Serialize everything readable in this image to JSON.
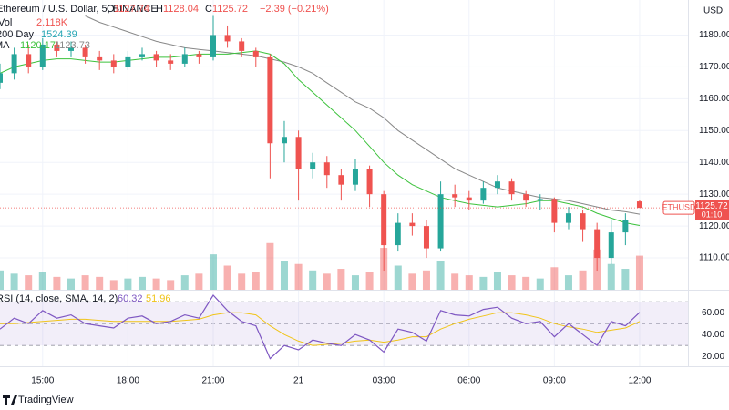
{
  "chart_data": {
    "type": "candlestick",
    "title": "Ethereum / U.S. Dollar, 5, BINANCE",
    "ohlc_letters": {
      "open": "O",
      "high": "H",
      "close": "C"
    },
    "change": "−2.39 (−0.21%)",
    "currency": "USD",
    "up_color": "#26a69a",
    "down_color": "#ef5350",
    "x": [
      -10.5,
      -10,
      -9.5,
      -9,
      -8.5,
      -8,
      -7.5,
      -7,
      -6.5,
      -6,
      -5.5,
      -5,
      -4.5,
      -4,
      -3.5,
      -3,
      -2.5,
      -2,
      -1.5,
      -1,
      -0.5,
      0,
      0.5,
      1,
      1.5,
      2,
      2.5,
      3,
      3.5,
      4,
      4.5,
      5,
      5.5,
      6,
      6.5,
      7,
      7.5,
      8,
      8.5,
      9,
      9.5,
      10,
      10.5,
      11,
      11.5,
      12
    ],
    "open": [
      1165,
      1168,
      1174,
      1170,
      1177,
      1175,
      1176,
      1173,
      1172,
      1170,
      1173,
      1174,
      1172,
      1171,
      1174,
      1173,
      1180,
      1178,
      1175,
      1173,
      1146,
      1148,
      1138,
      1140,
      1136,
      1133,
      1138,
      1130,
      1114,
      1121,
      1120,
      1113,
      1130,
      1129,
      1128,
      1132,
      1134,
      1130,
      1128,
      1128.5,
      1121,
      1124,
      1119,
      1110,
      1118,
      1127.74
    ],
    "high": [
      1171,
      1176,
      1177,
      1179,
      1178,
      1178,
      1177,
      1175,
      1174,
      1175,
      1176,
      1175,
      1174,
      1176,
      1175,
      1186,
      1183,
      1179,
      1176,
      1174,
      1153,
      1150,
      1143,
      1142,
      1138,
      1141,
      1139,
      1131,
      1124,
      1124,
      1122,
      1134,
      1133,
      1131,
      1134,
      1136,
      1135,
      1131,
      1130,
      1129,
      1126,
      1125,
      1121,
      1122,
      1124,
      1128.04
    ],
    "low": [
      1163,
      1166,
      1168,
      1169,
      1173,
      1173,
      1171,
      1169,
      1168,
      1169,
      1172,
      1170,
      1169,
      1170,
      1171,
      1172,
      1176,
      1173,
      1170,
      1135,
      1140,
      1128,
      1135,
      1132,
      1128,
      1131,
      1126,
      1106,
      1112,
      1117,
      1110,
      1112,
      1126,
      1125,
      1127,
      1130,
      1128,
      1126,
      1125,
      1118,
      1119,
      1115,
      1106,
      1108,
      1114,
      1125.72
    ],
    "close": [
      1168,
      1174,
      1170,
      1177,
      1175,
      1176,
      1173,
      1172,
      1170,
      1173,
      1174,
      1172,
      1171,
      1174,
      1173,
      1180,
      1178,
      1175,
      1173,
      1146,
      1148,
      1138,
      1140,
      1136,
      1133,
      1138,
      1130,
      1114,
      1121,
      1120,
      1113,
      1130,
      1129,
      1128,
      1132,
      1134,
      1130,
      1128,
      1128.5,
      1121,
      1124,
      1119,
      1110,
      1118,
      1122,
      1125.72
    ],
    "volume": {
      "label": "Vol",
      "value_label": "2.118K",
      "ylim": [
        0,
        18
      ],
      "values": [
        1.2,
        1.0,
        0.9,
        1.1,
        0.8,
        0.7,
        0.9,
        0.8,
        0.6,
        0.7,
        0.8,
        0.7,
        0.6,
        0.9,
        1.0,
        2.2,
        1.5,
        1.0,
        1.1,
        2.9,
        1.8,
        1.6,
        1.2,
        1.0,
        1.3,
        0.9,
        1.1,
        2.6,
        1.5,
        1.0,
        1.2,
        1.8,
        1.0,
        0.9,
        0.8,
        1.1,
        0.9,
        0.8,
        0.7,
        1.4,
        0.9,
        1.2,
        2.5,
        1.6,
        1.3,
        2.118
      ]
    },
    "day200": {
      "label": "200 Day",
      "value": "1524.39",
      "color": "#26a6b4"
    },
    "ma": {
      "label": "MA",
      "fast": {
        "color": "#3cc23c",
        "values": [
          1168,
          1170,
          1171,
          1172,
          1172.5,
          1172.5,
          1172,
          1171.5,
          1171.5,
          1172,
          1172.5,
          1173,
          1173,
          1173.5,
          1174,
          1174,
          1174,
          1174.5,
          1175,
          1174,
          1171,
          1166,
          1162,
          1158,
          1154,
          1150,
          1145,
          1140,
          1136,
          1133,
          1131,
          1129,
          1128,
          1127,
          1126.5,
          1126,
          1126.5,
          1127,
          1128,
          1128,
          1127,
          1126,
          1124,
          1122.5,
          1121,
          1120.17
        ]
      },
      "slow": {
        "color": "#888888",
        "values": [
          null,
          null,
          null,
          null,
          null,
          null,
          1186,
          1184,
          1182.5,
          1181,
          1179.5,
          1178,
          1177,
          1176,
          1175.5,
          1175,
          1174.5,
          1174,
          1173.5,
          1172.5,
          1171.5,
          1170,
          1168,
          1165,
          1162,
          1159,
          1157,
          1154,
          1150,
          1147,
          1144,
          1141,
          1138,
          1136,
          1134,
          1132,
          1131,
          1130,
          1129,
          1128.5,
          1128,
          1127,
          1126,
          1125,
          1124.5,
          1123.73
        ]
      }
    },
    "xlim": [
      -10.5,
      13.7
    ],
    "xticks": [
      {
        "value": -9,
        "label": "15:00"
      },
      {
        "value": -6,
        "label": "18:00"
      },
      {
        "value": -3,
        "label": "21:00"
      },
      {
        "value": 0,
        "label": "21"
      },
      {
        "value": 3,
        "label": "03:00"
      },
      {
        "value": 6,
        "label": "06:00"
      },
      {
        "value": 9,
        "label": "09:00"
      },
      {
        "value": 12,
        "label": "12:00"
      }
    ],
    "ylim": [
      1100,
      1191
    ],
    "yticks": [
      {
        "value": 1110,
        "label": "1110.00"
      },
      {
        "value": 1120,
        "label": "1120.00"
      },
      {
        "value": 1130,
        "label": "1130.00"
      },
      {
        "value": 1140,
        "label": "1140.00"
      },
      {
        "value": 1150,
        "label": "1150.00"
      },
      {
        "value": 1160,
        "label": "1160.00"
      },
      {
        "value": 1170,
        "label": "1170.00"
      },
      {
        "value": 1180,
        "label": "1180.00"
      }
    ],
    "price_tag": {
      "symbol": "ETHUSD",
      "countdown": "01:10",
      "color": "#ef5350"
    },
    "rsi": {
      "label": "RSI (14, close, SMA, 14, 2)",
      "color": "#7e57c2",
      "ma_color": "#f0c419",
      "ma_value": "51.96",
      "ylim": [
        11,
        81
      ],
      "levels": [
        30,
        50,
        70
      ],
      "yticks": [
        {
          "value": 20,
          "label": "20.00"
        },
        {
          "value": 40,
          "label": "40.00"
        },
        {
          "value": 60,
          "label": "60.00"
        }
      ],
      "values": [
        45,
        55,
        50,
        62,
        55,
        58,
        50,
        48,
        46,
        55,
        57,
        50,
        52,
        58,
        55,
        76,
        62,
        52,
        48,
        18,
        30,
        26,
        35,
        32,
        30,
        40,
        35,
        24,
        45,
        42,
        34,
        62,
        58,
        57,
        63,
        65,
        55,
        50,
        52,
        38,
        50,
        40,
        30,
        52,
        48,
        60.32
      ],
      "ma": [
        50,
        50,
        51,
        52,
        53,
        54,
        54,
        53,
        52,
        52,
        52,
        52,
        52,
        53,
        54,
        58,
        60,
        60,
        58,
        48,
        40,
        34,
        30,
        31,
        32,
        34,
        35,
        33,
        35,
        38,
        38,
        45,
        50,
        54,
        57,
        60,
        60,
        58,
        55,
        50,
        47,
        45,
        42,
        44,
        46,
        51.96
      ]
    },
    "brand": "TradingView"
  }
}
